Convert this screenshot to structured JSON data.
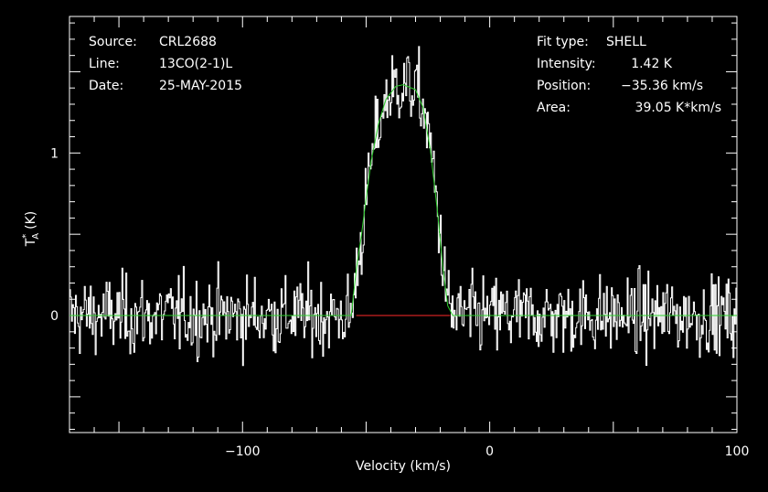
{
  "header_left": {
    "source_label": "Source:",
    "source_value": "CRL2688",
    "line_label": "Line:",
    "line_value": "13CO(2-1)L",
    "date_label": "Date:",
    "date_value": "25-MAY-2015"
  },
  "header_right": {
    "fit_label": "Fit type:",
    "fit_value": "SHELL",
    "intensity_label": "Intensity:",
    "intensity_value": "1.42 K",
    "position_label": "Position:",
    "position_value": "−35.36 km/s",
    "area_label": "Area:",
    "area_value": "39.05 K*km/s"
  },
  "chart_data": {
    "type": "line",
    "xlabel": "Velocity (km/s)",
    "ylabel_main": "T",
    "ylabel_sub": "A",
    "ylabel_sup": "*",
    "ylabel_unit": "(K)",
    "xlim": [
      -170,
      100
    ],
    "ylim": [
      -0.72,
      1.84
    ],
    "x_ticks": [
      -100,
      0,
      100
    ],
    "x_tick_labels": [
      "−100",
      "0",
      "100"
    ],
    "y_ticks": [
      0,
      1
    ],
    "y_tick_labels": [
      "0",
      "1"
    ],
    "noise_rms": 0.12,
    "series": [
      {
        "kind": "spectrum",
        "color": "#ffffff",
        "x_step": 0.4
      },
      {
        "kind": "fit",
        "color": "#2bd12b",
        "x": [
          -170,
          -56,
          -54,
          -52,
          -50,
          -48,
          -45,
          -42,
          -38,
          -35,
          -30,
          -27,
          -24,
          -21,
          -19,
          -17,
          -15,
          -13,
          100
        ],
        "y": [
          0,
          0,
          0.28,
          0.48,
          0.72,
          0.95,
          1.18,
          1.33,
          1.41,
          1.42,
          1.39,
          1.28,
          1.02,
          0.62,
          0.3,
          0.06,
          0,
          0,
          0
        ]
      },
      {
        "kind": "baseline_window",
        "color": "#cc2222",
        "x": [
          -54,
          -16
        ],
        "y": [
          0,
          0
        ]
      }
    ]
  }
}
